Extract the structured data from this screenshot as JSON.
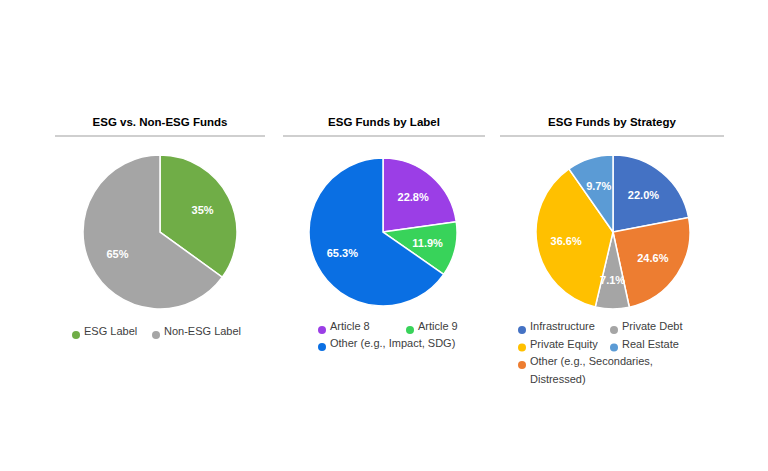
{
  "chart_data": [
    {
      "type": "pie",
      "title": "ESG vs. Non-ESG Funds",
      "categories": [
        "ESG Label",
        "Non-ESG Label"
      ],
      "values": [
        35,
        65
      ],
      "value_labels": [
        "35%",
        "65%"
      ],
      "colors": [
        "#70ad47",
        "#a5a5a5"
      ],
      "data_labels": true,
      "legend": "bottom"
    },
    {
      "type": "pie",
      "title": "ESG Funds by Label",
      "categories": [
        "Article 8",
        "Article 9",
        "Other (e.g., Impact, SDG)"
      ],
      "values": [
        22.8,
        11.9,
        65.3
      ],
      "value_labels": [
        "22.8%",
        "11.9%",
        "65.3%"
      ],
      "colors": [
        "#9b3ee6",
        "#38d35a",
        "#0a6fe3"
      ],
      "data_labels": true,
      "legend": "bottom"
    },
    {
      "type": "pie",
      "title": "ESG Funds by Strategy",
      "categories": [
        "Infrastructure",
        "Other (e.g., Secondaries, Distressed)",
        "Private Debt",
        "Private Equity",
        "Real Estate"
      ],
      "values": [
        22.0,
        24.6,
        7.1,
        36.6,
        9.7
      ],
      "value_labels": [
        "22.0%",
        "24.6%",
        "7.1%",
        "36.6%",
        "9.7%"
      ],
      "colors": [
        "#4472c4",
        "#ed7d31",
        "#a5a5a5",
        "#ffc000",
        "#5b9bd5"
      ],
      "data_labels": true,
      "legend": "bottom"
    }
  ]
}
